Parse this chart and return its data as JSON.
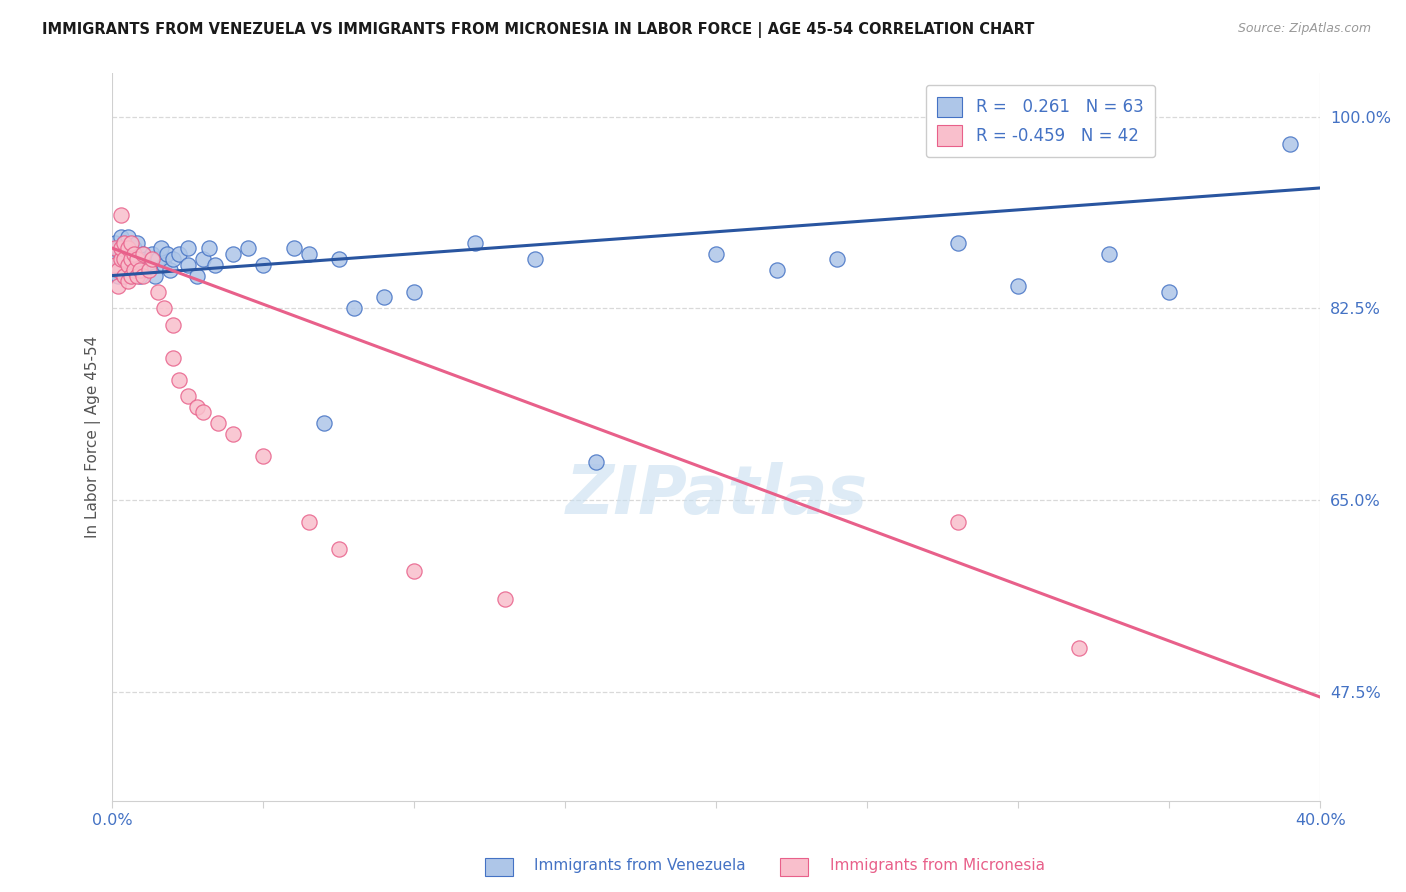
{
  "title": "IMMIGRANTS FROM VENEZUELA VS IMMIGRANTS FROM MICRONESIA IN LABOR FORCE | AGE 45-54 CORRELATION CHART",
  "source": "Source: ZipAtlas.com",
  "ylabel": "In Labor Force | Age 45-54",
  "ytick_vals": [
    0.475,
    0.65,
    0.825,
    1.0
  ],
  "ytick_labels": [
    "47.5%",
    "65.0%",
    "82.5%",
    "100.0%"
  ],
  "xmin": 0.0,
  "xmax": 0.4,
  "ymin": 0.375,
  "ymax": 1.04,
  "legend_R_blue": "0.261",
  "legend_N_blue": "63",
  "legend_R_pink": "-0.459",
  "legend_N_pink": "42",
  "legend_label_blue": "Immigrants from Venezuela",
  "legend_label_pink": "Immigrants from Micronesia",
  "blue_fill": "#aec6e8",
  "pink_fill": "#f9bfcc",
  "blue_edge": "#4472c4",
  "pink_edge": "#e8608a",
  "blue_line": "#2955a0",
  "pink_line": "#e8608a",
  "title_color": "#1a1a1a",
  "axis_color": "#4472c4",
  "grid_color": "#d0d0d0",
  "watermark_color": "#c8dff0",
  "blue_trend_x0": 0.0,
  "blue_trend_y0": 0.855,
  "blue_trend_x1": 0.4,
  "blue_trend_y1": 0.935,
  "pink_trend_x0": 0.0,
  "pink_trend_y0": 0.88,
  "pink_trend_x1": 0.4,
  "pink_trend_y1": 0.47,
  "blue_x": [
    0.001,
    0.001,
    0.001,
    0.002,
    0.002,
    0.002,
    0.003,
    0.003,
    0.003,
    0.004,
    0.004,
    0.004,
    0.005,
    0.005,
    0.005,
    0.006,
    0.006,
    0.007,
    0.007,
    0.008,
    0.008,
    0.009,
    0.009,
    0.01,
    0.01,
    0.011,
    0.012,
    0.013,
    0.014,
    0.015,
    0.016,
    0.017,
    0.018,
    0.019,
    0.02,
    0.022,
    0.025,
    0.025,
    0.028,
    0.03,
    0.032,
    0.034,
    0.04,
    0.045,
    0.05,
    0.06,
    0.065,
    0.07,
    0.075,
    0.08,
    0.09,
    0.1,
    0.12,
    0.14,
    0.16,
    0.2,
    0.22,
    0.24,
    0.28,
    0.3,
    0.33,
    0.35,
    0.39
  ],
  "blue_y": [
    0.86,
    0.875,
    0.885,
    0.855,
    0.87,
    0.88,
    0.86,
    0.875,
    0.89,
    0.855,
    0.87,
    0.885,
    0.86,
    0.875,
    0.89,
    0.855,
    0.87,
    0.86,
    0.88,
    0.87,
    0.885,
    0.855,
    0.87,
    0.86,
    0.875,
    0.87,
    0.865,
    0.875,
    0.855,
    0.87,
    0.88,
    0.865,
    0.875,
    0.86,
    0.87,
    0.875,
    0.865,
    0.88,
    0.855,
    0.87,
    0.88,
    0.865,
    0.875,
    0.88,
    0.865,
    0.88,
    0.875,
    0.72,
    0.87,
    0.825,
    0.835,
    0.84,
    0.885,
    0.87,
    0.685,
    0.875,
    0.86,
    0.87,
    0.885,
    0.845,
    0.875,
    0.84,
    0.975
  ],
  "pink_x": [
    0.001,
    0.001,
    0.002,
    0.002,
    0.003,
    0.003,
    0.003,
    0.004,
    0.004,
    0.004,
    0.005,
    0.005,
    0.005,
    0.006,
    0.006,
    0.006,
    0.007,
    0.007,
    0.008,
    0.008,
    0.009,
    0.01,
    0.01,
    0.012,
    0.013,
    0.015,
    0.017,
    0.02,
    0.02,
    0.022,
    0.025,
    0.028,
    0.03,
    0.035,
    0.04,
    0.05,
    0.065,
    0.075,
    0.1,
    0.13,
    0.28,
    0.32
  ],
  "pink_y": [
    0.865,
    0.88,
    0.845,
    0.86,
    0.87,
    0.88,
    0.91,
    0.855,
    0.87,
    0.885,
    0.85,
    0.865,
    0.88,
    0.855,
    0.87,
    0.885,
    0.86,
    0.875,
    0.855,
    0.87,
    0.86,
    0.875,
    0.855,
    0.86,
    0.87,
    0.84,
    0.825,
    0.78,
    0.81,
    0.76,
    0.745,
    0.735,
    0.73,
    0.72,
    0.71,
    0.69,
    0.63,
    0.605,
    0.585,
    0.56,
    0.63,
    0.515
  ]
}
